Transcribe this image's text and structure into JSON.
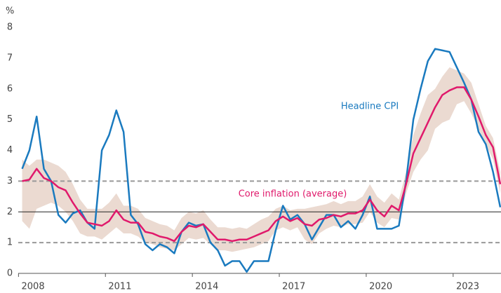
{
  "chart_data": {
    "type": "line",
    "y_unit_label": "%",
    "x": [
      2007.625,
      2007.875,
      2008.125,
      2008.375,
      2008.625,
      2008.875,
      2009.125,
      2009.375,
      2009.625,
      2009.875,
      2010.125,
      2010.375,
      2010.625,
      2010.875,
      2011.125,
      2011.375,
      2011.625,
      2011.875,
      2012.125,
      2012.375,
      2012.625,
      2012.875,
      2013.125,
      2013.375,
      2013.625,
      2013.875,
      2014.125,
      2014.375,
      2014.625,
      2014.875,
      2015.125,
      2015.375,
      2015.625,
      2015.875,
      2016.125,
      2016.375,
      2016.625,
      2016.875,
      2017.125,
      2017.375,
      2017.625,
      2017.875,
      2018.125,
      2018.375,
      2018.625,
      2018.875,
      2019.125,
      2019.375,
      2019.625,
      2019.875,
      2020.125,
      2020.375,
      2020.625,
      2020.875,
      2021.125,
      2021.375,
      2021.625,
      2021.875,
      2022.125,
      2022.375,
      2022.625,
      2022.875,
      2023.125,
      2023.375,
      2023.625,
      2023.875,
      2024.125
    ],
    "series": [
      {
        "name": "Headline CPI",
        "color": "#1a7abf",
        "values": [
          3.4,
          4.0,
          5.1,
          3.4,
          3.0,
          1.9,
          1.65,
          1.95,
          2.05,
          1.65,
          1.45,
          4.0,
          4.5,
          5.3,
          4.6,
          1.9,
          1.6,
          0.95,
          0.75,
          0.95,
          0.85,
          0.65,
          1.35,
          1.65,
          1.55,
          1.6,
          1.0,
          0.75,
          0.25,
          0.4,
          0.4,
          0.05,
          0.4,
          0.4,
          0.4,
          1.4,
          2.2,
          1.75,
          1.9,
          1.6,
          1.1,
          1.5,
          1.9,
          1.9,
          1.5,
          1.7,
          1.45,
          1.9,
          2.5,
          1.45,
          1.45,
          1.45,
          1.55,
          3.0,
          5.0,
          6.0,
          6.9,
          7.3,
          7.25,
          7.2,
          6.7,
          6.2,
          5.65,
          4.6,
          4.2,
          3.3,
          2.15
        ]
      },
      {
        "name": "Core inflation (average)",
        "color": "#e0196b",
        "values": [
          3.0,
          3.05,
          3.4,
          3.1,
          3.0,
          2.8,
          2.7,
          2.3,
          1.95,
          1.65,
          1.6,
          1.55,
          1.7,
          2.05,
          1.75,
          1.65,
          1.65,
          1.35,
          1.3,
          1.2,
          1.15,
          1.05,
          1.35,
          1.55,
          1.5,
          1.6,
          1.35,
          1.1,
          1.1,
          1.05,
          1.1,
          1.1,
          1.2,
          1.3,
          1.4,
          1.7,
          1.85,
          1.7,
          1.8,
          1.6,
          1.55,
          1.75,
          1.8,
          1.9,
          1.85,
          1.95,
          1.95,
          2.05,
          2.4,
          2.05,
          1.85,
          2.2,
          2.05,
          2.9,
          3.9,
          4.4,
          4.9,
          5.4,
          5.8,
          5.95,
          6.05,
          6.05,
          5.65,
          5.1,
          4.5,
          4.1,
          2.9
        ]
      }
    ],
    "band": {
      "color": "#ebdad1",
      "lower": [
        1.7,
        1.45,
        2.1,
        2.2,
        2.3,
        2.2,
        2.0,
        1.7,
        1.3,
        1.2,
        1.2,
        1.1,
        1.3,
        1.5,
        1.3,
        1.3,
        1.2,
        1.0,
        0.95,
        0.85,
        0.8,
        0.75,
        0.95,
        1.15,
        1.1,
        1.15,
        0.95,
        0.75,
        0.75,
        0.7,
        0.75,
        0.8,
        0.85,
        0.95,
        1.05,
        1.4,
        1.5,
        1.4,
        1.5,
        1.1,
        0.95,
        1.3,
        1.45,
        1.55,
        1.5,
        1.6,
        1.6,
        1.65,
        2.0,
        1.65,
        1.5,
        1.8,
        1.75,
        2.6,
        3.3,
        3.7,
        4.0,
        4.7,
        4.9,
        5.0,
        5.5,
        5.6,
        5.2,
        4.7,
        4.2,
        3.7,
        2.6
      ],
      "upper": [
        3.7,
        3.5,
        3.7,
        3.7,
        3.6,
        3.5,
        3.3,
        2.9,
        2.4,
        2.1,
        2.1,
        2.1,
        2.3,
        2.6,
        2.2,
        2.2,
        2.1,
        1.8,
        1.7,
        1.6,
        1.55,
        1.4,
        1.8,
        2.0,
        1.95,
        2.05,
        1.75,
        1.5,
        1.5,
        1.45,
        1.5,
        1.45,
        1.6,
        1.75,
        1.85,
        2.1,
        2.2,
        2.05,
        2.1,
        2.1,
        2.15,
        2.2,
        2.25,
        2.35,
        2.25,
        2.35,
        2.35,
        2.5,
        2.9,
        2.5,
        2.3,
        2.6,
        2.4,
        3.3,
        4.5,
        5.2,
        5.8,
        6.0,
        6.4,
        6.7,
        6.6,
        6.5,
        6.2,
        5.5,
        4.8,
        4.4,
        3.3
      ]
    },
    "reference_lines": [
      {
        "value": 1,
        "style": "dashed"
      },
      {
        "value": 2,
        "style": "solid"
      },
      {
        "value": 3,
        "style": "dashed"
      }
    ],
    "xlim": [
      2007.49,
      2024.15
    ],
    "xticks": [
      2008,
      2011,
      2014,
      2017,
      2020,
      2023
    ],
    "ylim": [
      0,
      8
    ],
    "yticks": [
      0,
      1,
      2,
      3,
      4,
      5,
      6,
      7,
      8
    ]
  }
}
